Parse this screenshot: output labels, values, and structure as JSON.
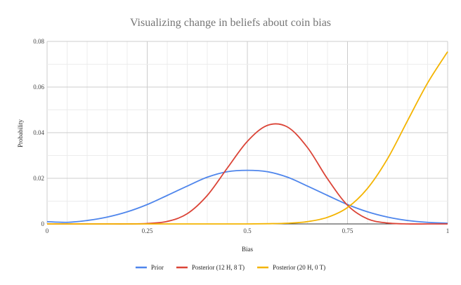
{
  "chart_data": {
    "type": "line",
    "title": "Visualizing change in beliefs about coin bias",
    "xlabel": "Bias",
    "ylabel": "Probability",
    "xlim": [
      0,
      1
    ],
    "ylim": [
      0,
      0.08
    ],
    "x_ticks": [
      "0",
      "0.25",
      "0.5",
      "0.75",
      "1"
    ],
    "y_ticks": [
      "0",
      "0.02",
      "0.04",
      "0.06",
      "0.08"
    ],
    "grid": true,
    "legend_position": "bottom",
    "x": [
      0,
      0.05,
      0.1,
      0.15,
      0.2,
      0.25,
      0.3,
      0.35,
      0.4,
      0.45,
      0.5,
      0.55,
      0.6,
      0.65,
      0.7,
      0.75,
      0.8,
      0.85,
      0.9,
      0.95,
      1.0
    ],
    "series": [
      {
        "name": "Prior",
        "color": "#4f86ec",
        "values": [
          0.001,
          0.0007,
          0.0015,
          0.003,
          0.0053,
          0.0085,
          0.0125,
          0.0166,
          0.0205,
          0.0229,
          0.0235,
          0.0229,
          0.0205,
          0.0166,
          0.0125,
          0.0085,
          0.0053,
          0.003,
          0.0015,
          0.0007,
          0.0003
        ]
      },
      {
        "name": "Posterior (12 H, 8 T)",
        "color": "#db4437",
        "values": [
          0,
          0,
          0,
          0,
          0,
          0.0002,
          0.0011,
          0.0045,
          0.0125,
          0.0245,
          0.0362,
          0.0432,
          0.0425,
          0.0335,
          0.0198,
          0.0082,
          0.0022,
          0.0004,
          0,
          0,
          0
        ]
      },
      {
        "name": "Posterior (20 H, 0 T)",
        "color": "#f4b400",
        "values": [
          0,
          0,
          0,
          0,
          0,
          0,
          0,
          0,
          0,
          0,
          0,
          0.0001,
          0.0003,
          0.001,
          0.0029,
          0.0072,
          0.0156,
          0.0286,
          0.0453,
          0.0618,
          0.0755
        ]
      }
    ]
  }
}
